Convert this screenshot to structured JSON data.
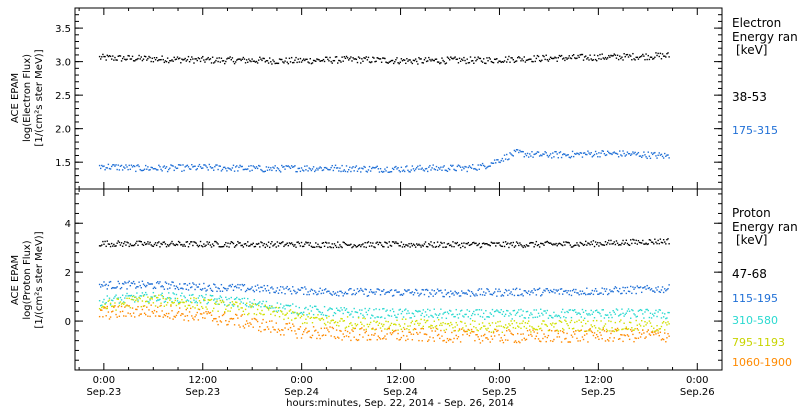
{
  "chart_data": [
    {
      "type": "scatter",
      "panel": "electron",
      "ylabel_lines": [
        "ACE EPAM",
        "log(Electron Flux)",
        "[1/(cm²s ster MeV)]"
      ],
      "ylim": [
        1.1,
        3.8
      ],
      "yticks": [
        1.5,
        2.0,
        2.5,
        3.0,
        3.5
      ],
      "ytick_labels": [
        "1.5",
        "2.0",
        "2.5",
        "3.0",
        "3.5"
      ],
      "legend_title": [
        "Electron",
        "Energy ran"
      ],
      "legend_unit": "[keV]",
      "series": [
        {
          "name": "38-53",
          "color": "#000000",
          "x": [
            -0.6,
            2,
            6,
            10,
            14,
            18,
            22,
            26,
            30,
            34,
            38,
            42,
            46,
            50,
            54,
            58,
            62,
            66,
            68.5
          ],
          "values": [
            3.07,
            3.06,
            3.05,
            3.04,
            3.03,
            3.03,
            3.02,
            3.03,
            3.04,
            3.03,
            3.02,
            3.03,
            3.03,
            3.05,
            3.06,
            3.07,
            3.08,
            3.09,
            3.1
          ]
        },
        {
          "name": "175-315",
          "color": "#1f6fd6",
          "x": [
            -0.6,
            4,
            8,
            12,
            16,
            20,
            24,
            28,
            32,
            36,
            40,
            44,
            46,
            48,
            50,
            52,
            56,
            60,
            64,
            68.5
          ],
          "values": [
            1.45,
            1.42,
            1.42,
            1.43,
            1.42,
            1.41,
            1.42,
            1.42,
            1.41,
            1.41,
            1.42,
            1.42,
            1.45,
            1.55,
            1.65,
            1.62,
            1.62,
            1.64,
            1.63,
            1.6
          ]
        }
      ]
    },
    {
      "type": "scatter",
      "panel": "proton",
      "ylabel_lines": [
        "ACE EPAM",
        "log(Proton Flux)",
        "[1/(cm²s ster MeV)]"
      ],
      "ylim": [
        -2,
        5.4
      ],
      "yticks": [
        0,
        2,
        4
      ],
      "ytick_labels": [
        "0",
        "2",
        "4"
      ],
      "legend_title": [
        "Proton",
        "Energy ran"
      ],
      "legend_unit": "[keV]",
      "series": [
        {
          "name": "47-68",
          "color": "#000000",
          "x": [
            -0.6,
            4,
            8,
            12,
            16,
            20,
            24,
            28,
            32,
            36,
            40,
            44,
            48,
            52,
            56,
            60,
            64,
            68.5
          ],
          "values": [
            3.2,
            3.18,
            3.17,
            3.17,
            3.17,
            3.16,
            3.16,
            3.15,
            3.15,
            3.15,
            3.15,
            3.15,
            3.15,
            3.16,
            3.17,
            3.2,
            3.25,
            3.3
          ]
        },
        {
          "name": "115-195",
          "color": "#1f6fd6",
          "x": [
            -0.6,
            4,
            8,
            12,
            16,
            20,
            24,
            28,
            32,
            36,
            40,
            44,
            48,
            52,
            56,
            60,
            64,
            68.5
          ],
          "values": [
            1.5,
            1.5,
            1.48,
            1.42,
            1.38,
            1.33,
            1.27,
            1.22,
            1.2,
            1.2,
            1.18,
            1.18,
            1.2,
            1.22,
            1.23,
            1.25,
            1.3,
            1.35
          ]
        },
        {
          "name": "310-580",
          "color": "#2ad9d0",
          "x": [
            -0.6,
            4,
            8,
            12,
            16,
            20,
            24,
            28,
            32,
            36,
            40,
            44,
            48,
            52,
            56,
            60,
            64,
            68.5
          ],
          "values": [
            0.85,
            1.0,
            1.0,
            0.92,
            0.82,
            0.65,
            0.48,
            0.4,
            0.35,
            0.33,
            0.32,
            0.3,
            0.3,
            0.32,
            0.33,
            0.33,
            0.33,
            0.3
          ]
        },
        {
          "name": "795-1193",
          "color": "#d0e000",
          "x": [
            -0.6,
            4,
            8,
            12,
            16,
            20,
            24,
            28,
            32,
            36,
            40,
            44,
            48,
            52,
            56,
            60,
            64,
            68.5
          ],
          "values": [
            0.6,
            0.85,
            0.85,
            0.72,
            0.58,
            0.42,
            0.15,
            0.0,
            -0.08,
            -0.12,
            -0.15,
            -0.18,
            -0.2,
            -0.18,
            -0.15,
            -0.15,
            -0.18,
            -0.2
          ]
        },
        {
          "name": "1060-1900",
          "color": "#ff8a00",
          "x": [
            -0.6,
            4,
            8,
            12,
            16,
            20,
            24,
            28,
            32,
            36,
            40,
            44,
            48,
            52,
            56,
            60,
            64,
            68.5
          ],
          "values": [
            0.35,
            0.45,
            0.4,
            0.22,
            0.05,
            -0.2,
            -0.42,
            -0.48,
            -0.52,
            -0.55,
            -0.55,
            -0.58,
            -0.6,
            -0.6,
            -0.58,
            -0.55,
            -0.55,
            -0.55
          ]
        }
      ]
    }
  ],
  "x_axis": {
    "xlim": [
      -3.5,
      75
    ],
    "tick_hours": [
      0,
      12,
      24,
      36,
      48,
      60,
      72
    ],
    "tick_times": [
      "0:00",
      "12:00",
      "0:00",
      "12:00",
      "0:00",
      "12:00",
      "0:00"
    ],
    "tick_dates": [
      "Sep.23",
      "Sep.23",
      "Sep.24",
      "Sep.24",
      "Sep.25",
      "Sep.25",
      "Sep.26"
    ],
    "xlabel": "hours:minutes, Sep. 22, 2014 - Sep. 26, 2014"
  }
}
